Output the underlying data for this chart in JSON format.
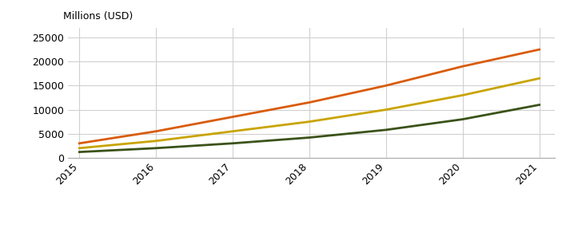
{
  "years": [
    2015,
    2016,
    2017,
    2018,
    2019,
    2020,
    2021
  ],
  "aggressive": [
    3000,
    5500,
    8500,
    11500,
    15000,
    19000,
    22500
  ],
  "moderate": [
    2000,
    3500,
    5500,
    7500,
    10000,
    13000,
    16500
  ],
  "conservative": [
    1200,
    2000,
    3000,
    4200,
    5800,
    8000,
    11000
  ],
  "colors": {
    "aggressive": "#D95B0A",
    "moderate": "#C8A400",
    "conservative": "#3B5219"
  },
  "ylabel": "Millions (USD)",
  "ylim": [
    0,
    27000
  ],
  "yticks": [
    0,
    5000,
    10000,
    15000,
    20000,
    25000
  ],
  "linewidth": 2.0,
  "background_color": "#ffffff",
  "grid_color": "#d0d0d0"
}
